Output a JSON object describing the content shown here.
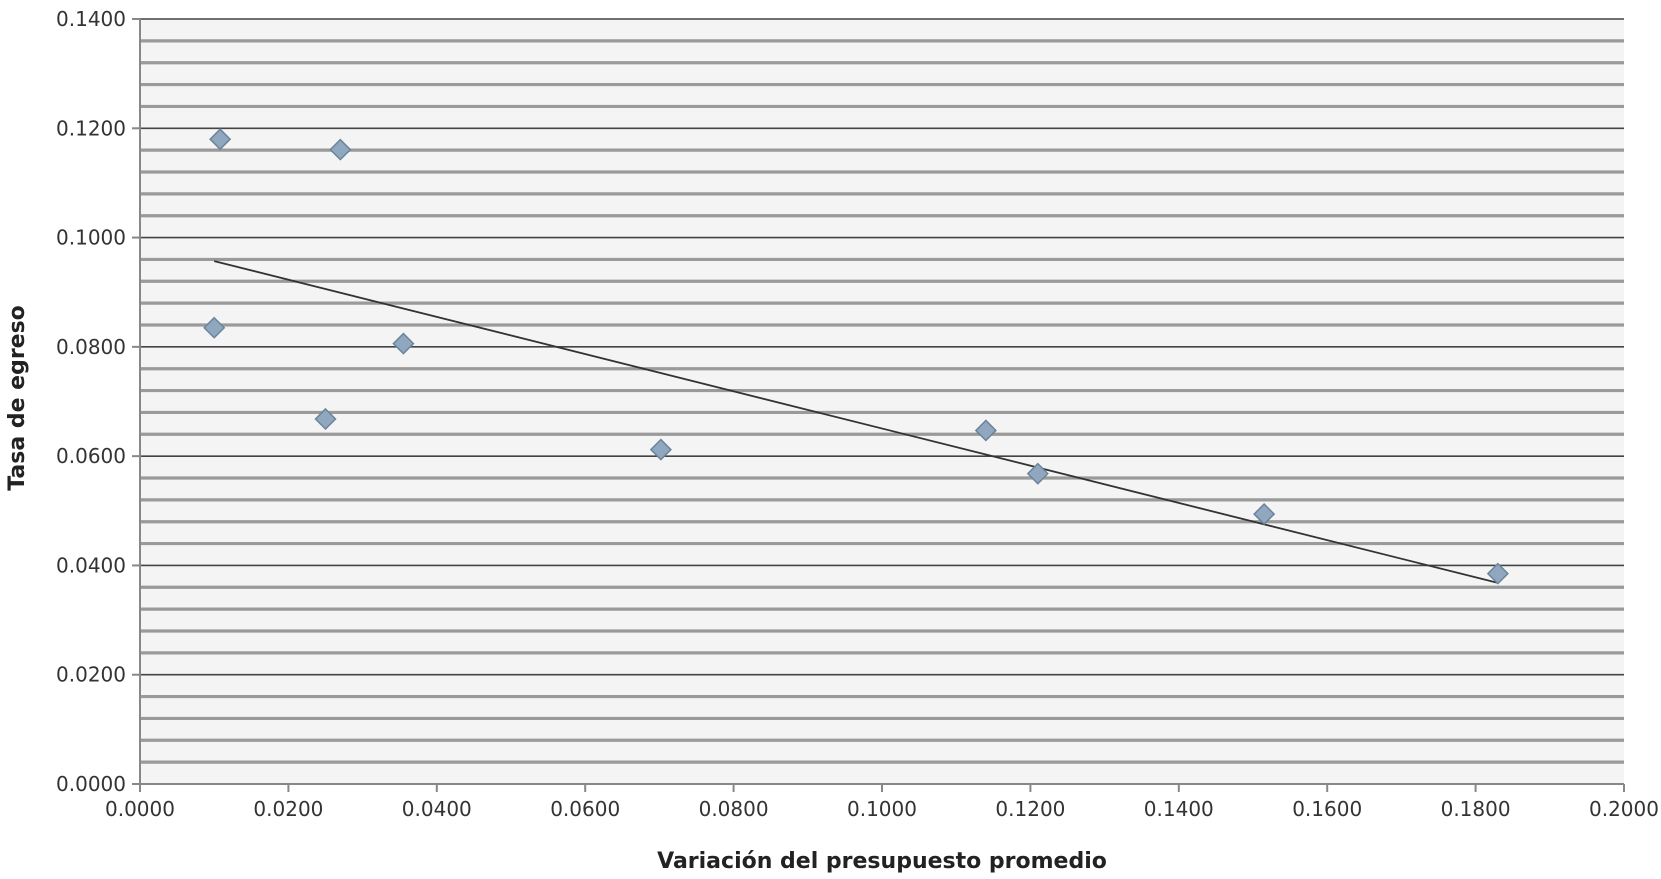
{
  "chart_data": {
    "type": "scatter",
    "title": "",
    "xlabel": "Variación del presupuesto promedio",
    "ylabel": "Tasa de egreso",
    "xlim": [
      0,
      0.2
    ],
    "ylim": [
      0,
      0.14
    ],
    "x_ticks": [
      "0.0000",
      "0.0200",
      "0.0400",
      "0.0600",
      "0.0800",
      "0.1000",
      "0.1200",
      "0.1400",
      "0.1600",
      "0.1800",
      "0.2000"
    ],
    "y_ticks": [
      "0.0000",
      "0.0200",
      "0.0400",
      "0.0600",
      "0.0800",
      "0.1000",
      "0.1200",
      "0.1400"
    ],
    "grid": "horizontal major and minor",
    "legend": "none",
    "marker": "diamond",
    "colors": {
      "marker_fill": "#8FA8C0",
      "marker_stroke": "#6B8499",
      "trendline": "#333333",
      "grid_major": "#444444",
      "grid_minor": "#9a9a9a",
      "band_light": "#f4f4f4",
      "axis": "#888888"
    },
    "series": [
      {
        "x": [
          0.01,
          0.0108,
          0.025,
          0.027,
          0.0355,
          0.0702,
          0.114,
          0.121,
          0.1515,
          0.183
        ],
        "y": [
          0.0835,
          0.118,
          0.0668,
          0.1161,
          0.0806,
          0.0612,
          0.0647,
          0.0568,
          0.0494,
          0.0385
        ]
      }
    ],
    "trendline": {
      "type": "linear",
      "x": [
        0.01,
        0.183
      ],
      "y": [
        0.0957,
        0.0368
      ]
    }
  }
}
